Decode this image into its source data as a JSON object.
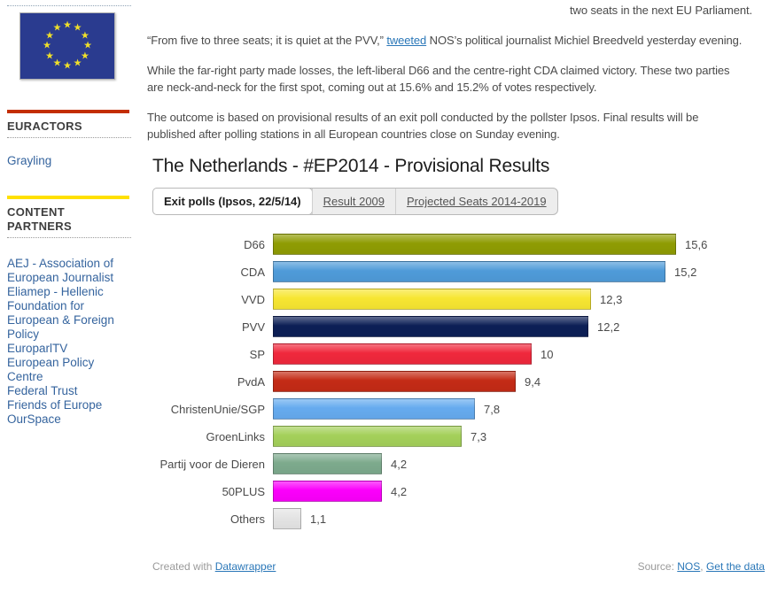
{
  "colors": {
    "accent_red_bar": "#c32e00",
    "accent_yellow_bar": "#ffe000",
    "sidebar_link": "#35649e",
    "body_link": "#2a77b8",
    "flag_blue": "#2a3b8f",
    "flag_star_gold": "#f0e02a"
  },
  "sidebar": {
    "euractors_heading": "EURACTORS",
    "euractors_link": "Grayling",
    "partners_heading": "CONTENT PARTNERS",
    "partners": [
      [
        "AEJ - Association of",
        "European Journalist"
      ],
      [
        "Eliamep - Hellenic",
        "Foundation for",
        "European & Foreign",
        "Policy"
      ],
      [
        "EuroparlTV"
      ],
      [
        "European Policy Centre"
      ],
      [
        "Federal Trust"
      ],
      [
        "Friends of Europe"
      ],
      [
        "OurSpace"
      ]
    ]
  },
  "article": {
    "tail_line": "two seats in the next EU Parliament.",
    "quote_before": "“From five to three seats; it is quiet at the PVV,” ",
    "quote_link": "tweeted",
    "quote_after": " NOS’s political journalist Michiel Breedveld yesterday evening.",
    "para2_lines": [
      "While the far-right party made losses, the left-liberal D66 and the centre-right CDA claimed victory. These two parties",
      "are neck-and-neck for the first spot, coming out at 15.6% and 15.2% of votes respectively."
    ],
    "para3_lines": [
      "The outcome is based on provisional results of an exit poll conducted by the pollster Ipsos. Final results will be",
      "published after polling stations in all European countries close on Sunday evening."
    ]
  },
  "chart": {
    "tabs": [
      {
        "label": "Exit polls (Ipsos, 22/5/14)",
        "active": true
      },
      {
        "label": "Result 2009",
        "active": false
      },
      {
        "label": "Projected Seats 2014-2019",
        "active": false
      }
    ],
    "footer": {
      "created_prefix": "Created with ",
      "created_link": "Datawrapper",
      "source_prefix": "Source: ",
      "source_link1": "NOS",
      "separator": ", ",
      "source_link2": "Get the data"
    }
  },
  "chart_data": {
    "type": "bar",
    "orientation": "horizontal",
    "title": "The Netherlands - #EP2014 - Provisional Results",
    "categories": [
      "D66",
      "CDA",
      "VVD",
      "PVV",
      "SP",
      "PvdA",
      "ChristenUnie/SGP",
      "GroenLinks",
      "Partij voor de Dieren",
      "50PLUS",
      "Others"
    ],
    "values": [
      15.6,
      15.2,
      12.3,
      12.2,
      10,
      9.4,
      7.8,
      7.3,
      4.2,
      4.2,
      1.1
    ],
    "value_labels": [
      "15,6",
      "15,2",
      "12,3",
      "12,2",
      "10",
      "9,4",
      "7,8",
      "7,3",
      "4,2",
      "4,2",
      "1,1"
    ],
    "bar_colors": [
      "#8f9c03",
      "#4f9bd9",
      "#f7e632",
      "#0c1f56",
      "#f0283c",
      "#c42b16",
      "#66abef",
      "#a4d05a",
      "#7daa8d",
      "#fb00fb",
      "#e4e4e4"
    ],
    "xlim": [
      0,
      16
    ],
    "grid": false,
    "legend": "none",
    "value_label_position": "right-of-bar"
  }
}
